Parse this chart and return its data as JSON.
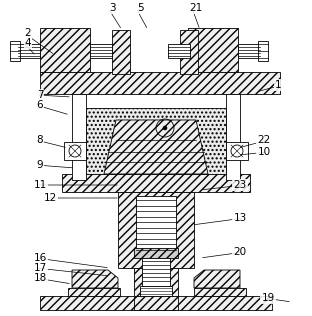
{
  "bg_color": "#ffffff",
  "figsize": [
    3.12,
    3.16
  ],
  "dpi": 100,
  "annotations": [
    [
      "2",
      28,
      33,
      55,
      55
    ],
    [
      "4",
      28,
      43,
      36,
      56
    ],
    [
      "3",
      112,
      8,
      122,
      30
    ],
    [
      "5",
      140,
      8,
      148,
      30
    ],
    [
      "21",
      196,
      8,
      200,
      30
    ],
    [
      "1",
      278,
      85,
      256,
      92
    ],
    [
      "7",
      40,
      95,
      72,
      97
    ],
    [
      "6",
      40,
      105,
      70,
      115
    ],
    [
      "8",
      40,
      140,
      68,
      148
    ],
    [
      "9",
      40,
      165,
      75,
      168
    ],
    [
      "22",
      264,
      140,
      238,
      148
    ],
    [
      "10",
      264,
      152,
      238,
      155
    ],
    [
      "11",
      40,
      185,
      120,
      185
    ],
    [
      "12",
      50,
      198,
      120,
      198
    ],
    [
      "23",
      240,
      185,
      200,
      190
    ],
    [
      "13",
      240,
      218,
      192,
      225
    ],
    [
      "20",
      240,
      252,
      200,
      258
    ],
    [
      "16",
      40,
      258,
      110,
      268
    ],
    [
      "17",
      40,
      268,
      110,
      276
    ],
    [
      "18",
      40,
      278,
      72,
      284
    ],
    [
      "19",
      268,
      298,
      292,
      302
    ]
  ]
}
